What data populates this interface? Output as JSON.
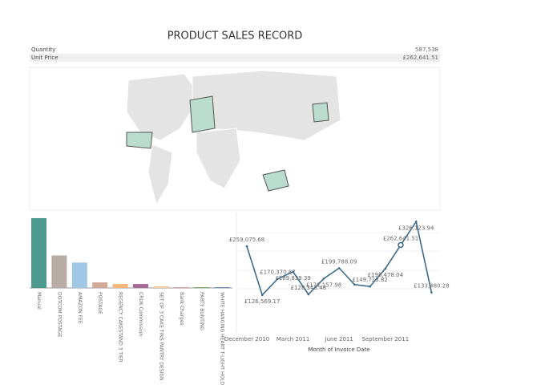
{
  "header": {
    "title": "PRODUCT SALES RECORD"
  },
  "summary": [
    {
      "label": "Quantity",
      "value": "587,538"
    },
    {
      "label": "Unit Price",
      "value": "£262,641.51"
    }
  ],
  "chart_data": [
    {
      "type": "bar",
      "categories": [
        "Manual",
        "DOTCOM POSTAGE",
        "AMAZON FEE",
        "POSTAGE",
        "REGENCY CAKESTAND 3 TIER",
        "CRUK Commission",
        "SET OF 3 CAKE TINS PANTRY DESIGN",
        "Bank Charges",
        "PARTY BUNTING",
        "WHITE HANGING HEART T-LIGHT HOLDER"
      ],
      "values": [
        88,
        41,
        32,
        7,
        5,
        5,
        2,
        1,
        1,
        1
      ],
      "colors": [
        "#4e9a8f",
        "#b8aca6",
        "#a0c8e4",
        "#d4a896",
        "#f5b87a",
        "#a56a96",
        "#f5c89a",
        "#d9a0a8",
        "#7aa86a",
        "#6a8ab0"
      ],
      "ylim": [
        0,
        92
      ]
    },
    {
      "type": "line",
      "x_label": "Month of Invoice Date",
      "categories": [
        "December 2010",
        null,
        null,
        "March 2011",
        null,
        null,
        "June 2011",
        null,
        null,
        "September 2011",
        null,
        null,
        null
      ],
      "series": [
        {
          "color": "#3d6a8a",
          "values": [
            259075.68,
            126569.17,
            170370.87,
            189839.39,
            128343.48,
            171157.98,
            199788.09,
            155000,
            149723.82,
            198478.04,
            262641.51,
            326123.94,
            133480.28
          ],
          "value_labels": [
            "£259,075.68",
            "£126,569.17",
            "£170,370.87",
            "£189,839.39",
            "£128,343.48",
            "£171,157.98",
            "£199,788.09",
            null,
            "£149,723.82",
            "£198,478.04",
            "£262,641.51",
            "£326,123.94",
            "£133,480.28"
          ]
        }
      ],
      "highlight": 10,
      "ylim": [
        100000,
        340000
      ]
    }
  ]
}
